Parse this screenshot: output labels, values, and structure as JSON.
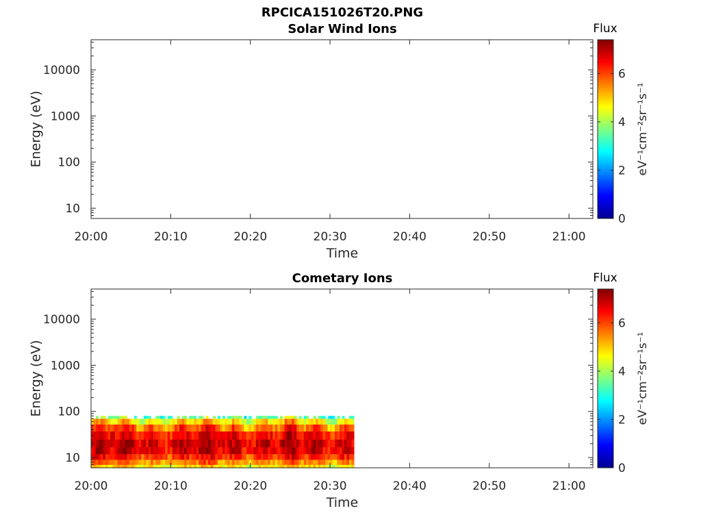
{
  "figure": {
    "title": "RPCICA151026T20.PNG"
  },
  "colors": {
    "colormap": [
      "#00008f",
      "#0000ff",
      "#0080ff",
      "#00ffff",
      "#80ff80",
      "#ffff00",
      "#ff8000",
      "#ff0000",
      "#800000"
    ],
    "axis": "#262626",
    "background": "#ffffff"
  },
  "chart_data": [
    {
      "type": "heatmap",
      "title": "Solar Wind Ions",
      "xlabel": "Time",
      "ylabel": "Energy (eV)",
      "x_ticks": [
        "20:00",
        "20:10",
        "20:20",
        "20:30",
        "20:40",
        "20:50",
        "21:00"
      ],
      "x_range_minutes": [
        0,
        63
      ],
      "y_scale": "log",
      "y_ticks": [
        10,
        100,
        1000,
        10000
      ],
      "y_tick_labels": [
        "10",
        "100",
        "1000",
        "10000"
      ],
      "y_range": [
        6,
        45000
      ],
      "colorbar": {
        "label": "Flux",
        "unit": "eV⁻¹cm⁻²sr⁻¹s⁻¹",
        "range": [
          0,
          7.4
        ],
        "ticks": [
          0,
          2,
          4,
          6
        ],
        "tick_labels": [
          "0",
          "2",
          "4",
          "6"
        ]
      },
      "data_present": false,
      "segments": []
    },
    {
      "type": "heatmap",
      "title": "Cometary Ions",
      "xlabel": "Time",
      "ylabel": "Energy (eV)",
      "x_ticks": [
        "20:00",
        "20:10",
        "20:20",
        "20:30",
        "20:40",
        "20:50",
        "21:00"
      ],
      "x_range_minutes": [
        0,
        63
      ],
      "y_scale": "log",
      "y_ticks": [
        10,
        100,
        1000,
        10000
      ],
      "y_tick_labels": [
        "10",
        "100",
        "1000",
        "10000"
      ],
      "y_range": [
        6,
        45000
      ],
      "colorbar": {
        "label": "Flux",
        "unit": "eV⁻¹cm⁻²sr⁻¹s⁻¹",
        "range": [
          0,
          7.4
        ],
        "ticks": [
          0,
          2,
          4,
          6
        ],
        "tick_labels": [
          "0",
          "2",
          "4",
          "6"
        ]
      },
      "data_present": true,
      "data_time_range": [
        "20:00",
        "20:33"
      ],
      "data_energy_range_eV": [
        6,
        80
      ],
      "flux_profile": {
        "energy_bands_eV": [
          80,
          60,
          45,
          30,
          20,
          14,
          10,
          8,
          6
        ],
        "typical_flux": [
          3.5,
          4.8,
          5.8,
          6.5,
          6.8,
          6.7,
          6.2,
          5.5,
          4.8
        ]
      }
    }
  ]
}
